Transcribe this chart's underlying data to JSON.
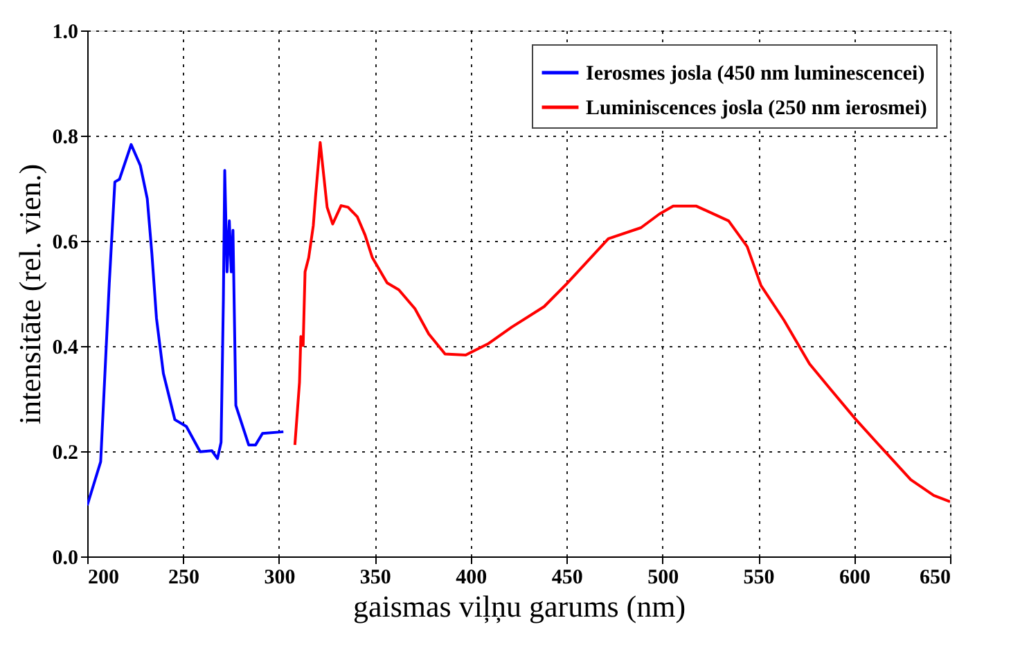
{
  "chart_data": {
    "type": "line",
    "xlabel": "gaismas viļņu garums (nm)",
    "ylabel": "intensitāte (rel. vien.)",
    "xlim": [
      200,
      650
    ],
    "xticks": [
      200,
      250,
      300,
      350,
      400,
      450,
      500,
      550,
      600,
      650
    ],
    "ylim": [
      0,
      1
    ],
    "yticks": [
      {
        "value": 0,
        "label": "0.0"
      },
      {
        "value": 0.2,
        "label": "0.2"
      },
      {
        "value": 0.4,
        "label": "0.4"
      },
      {
        "value": 0.6,
        "label": "0.6"
      },
      {
        "value": 0.8,
        "label": "0.8"
      },
      {
        "value": 1,
        "label": "1.0"
      }
    ],
    "grid": true,
    "legend": "top right",
    "line_style": "solid",
    "marker": "none",
    "series": [
      {
        "name": "Ierosmes josla (450 nm luminescencei)",
        "color": "#0000ff",
        "x": [
          200,
          207,
          211.5,
          214.4,
          216.8,
          222.9,
          227.7,
          231.3,
          233.7,
          236.1,
          239.7,
          245.7,
          251.7,
          258.9,
          265,
          267.9,
          269.8,
          271,
          271.7,
          272.9,
          274.1,
          275.1,
          276,
          277.5,
          284.2,
          287.8,
          291.4,
          302.3
        ],
        "values": [
          0.097,
          0.18,
          0.52,
          0.712,
          0.717,
          0.783,
          0.743,
          0.68,
          0.576,
          0.453,
          0.348,
          0.26,
          0.247,
          0.199,
          0.201,
          0.186,
          0.217,
          0.488,
          0.734,
          0.541,
          0.638,
          0.541,
          0.62,
          0.287,
          0.212,
          0.212,
          0.234,
          0.237
        ]
      },
      {
        "name": "Luminiscences josla (250 nm ierosmei)",
        "color": "#ff0000",
        "x": [
          308.3,
          310.7,
          311.4,
          312.6,
          313.6,
          315.5,
          317.9,
          319.1,
          321.5,
          325.1,
          328,
          332.4,
          336,
          340.8,
          344.9,
          348.7,
          356.4,
          362.5,
          370.9,
          378.1,
          386.6,
          397.4,
          409.4,
          421.4,
          438.3,
          450.2,
          471.8,
          488.8,
          498.4,
          505.6,
          517.7,
          534.5,
          544.2,
          551.4,
          563.4,
          576.7,
          587.6,
          600.7,
          613.9,
          629.5,
          641.5,
          650
        ],
        "values": [
          0.212,
          0.331,
          0.418,
          0.401,
          0.541,
          0.568,
          0.629,
          0.686,
          0.787,
          0.664,
          0.632,
          0.667,
          0.664,
          0.646,
          0.611,
          0.568,
          0.52,
          0.507,
          0.471,
          0.423,
          0.385,
          0.383,
          0.405,
          0.436,
          0.475,
          0.519,
          0.604,
          0.625,
          0.651,
          0.666,
          0.666,
          0.638,
          0.589,
          0.515,
          0.449,
          0.366,
          0.318,
          0.261,
          0.208,
          0.146,
          0.116,
          0.104
        ]
      }
    ]
  }
}
